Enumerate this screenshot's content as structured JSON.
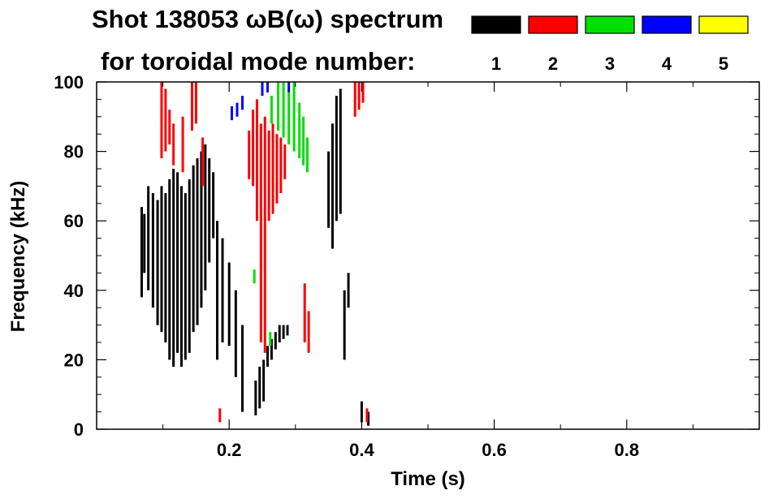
{
  "chart_data": {
    "type": "heatmap",
    "title_line1": "Shot 138053 ωB(ω) spectrum",
    "title_line2": "for toroidal mode number:",
    "xlabel": "Time (s)",
    "ylabel": "Frequency (kHz)",
    "xlim": [
      0.0,
      1.0
    ],
    "ylim": [
      0,
      100
    ],
    "xticks": [
      0.2,
      0.4,
      0.6,
      0.8
    ],
    "xtick_labels": [
      "0.2",
      "0.4",
      "0.6",
      "0.8"
    ],
    "yticks": [
      0,
      20,
      40,
      60,
      80,
      100
    ],
    "ytick_labels": [
      "0",
      "20",
      "40",
      "60",
      "80",
      "100"
    ],
    "legend": [
      {
        "mode": "1",
        "color": "#000000"
      },
      {
        "mode": "2",
        "color": "#ff0000"
      },
      {
        "mode": "3",
        "color": "#00e000"
      },
      {
        "mode": "4",
        "color": "#0000ff"
      },
      {
        "mode": "5",
        "color": "#ffff00"
      }
    ],
    "series": [
      {
        "mode": "1",
        "name": "n=1",
        "color": "#000000",
        "segments": [
          {
            "t": 0.068,
            "f0": 38,
            "f1": 64
          },
          {
            "t": 0.072,
            "f0": 45,
            "f1": 62
          },
          {
            "t": 0.078,
            "f0": 40,
            "f1": 70
          },
          {
            "t": 0.085,
            "f0": 35,
            "f1": 68
          },
          {
            "t": 0.092,
            "f0": 30,
            "f1": 66
          },
          {
            "t": 0.098,
            "f0": 28,
            "f1": 70
          },
          {
            "t": 0.104,
            "f0": 25,
            "f1": 68
          },
          {
            "t": 0.11,
            "f0": 20,
            "f1": 72
          },
          {
            "t": 0.116,
            "f0": 18,
            "f1": 75
          },
          {
            "t": 0.122,
            "f0": 22,
            "f1": 74
          },
          {
            "t": 0.128,
            "f0": 18,
            "f1": 70
          },
          {
            "t": 0.134,
            "f0": 20,
            "f1": 68
          },
          {
            "t": 0.14,
            "f0": 22,
            "f1": 72
          },
          {
            "t": 0.146,
            "f0": 28,
            "f1": 76
          },
          {
            "t": 0.152,
            "f0": 30,
            "f1": 78
          },
          {
            "t": 0.158,
            "f0": 35,
            "f1": 80
          },
          {
            "t": 0.164,
            "f0": 40,
            "f1": 82
          },
          {
            "t": 0.17,
            "f0": 48,
            "f1": 78
          },
          {
            "t": 0.176,
            "f0": 55,
            "f1": 74
          },
          {
            "t": 0.182,
            "f0": 20,
            "f1": 60
          },
          {
            "t": 0.19,
            "f0": 25,
            "f1": 55
          },
          {
            "t": 0.2,
            "f0": 24,
            "f1": 48
          },
          {
            "t": 0.21,
            "f0": 15,
            "f1": 40
          },
          {
            "t": 0.22,
            "f0": 5,
            "f1": 30
          },
          {
            "t": 0.24,
            "f0": 4,
            "f1": 14
          },
          {
            "t": 0.246,
            "f0": 6,
            "f1": 18
          },
          {
            "t": 0.252,
            "f0": 8,
            "f1": 20
          },
          {
            "t": 0.258,
            "f0": 18,
            "f1": 24
          },
          {
            "t": 0.264,
            "f0": 20,
            "f1": 26
          },
          {
            "t": 0.27,
            "f0": 23,
            "f1": 28
          },
          {
            "t": 0.276,
            "f0": 25,
            "f1": 30
          },
          {
            "t": 0.282,
            "f0": 26,
            "f1": 30
          },
          {
            "t": 0.288,
            "f0": 27,
            "f1": 30
          },
          {
            "t": 0.35,
            "f0": 58,
            "f1": 80
          },
          {
            "t": 0.356,
            "f0": 52,
            "f1": 88
          },
          {
            "t": 0.362,
            "f0": 60,
            "f1": 96
          },
          {
            "t": 0.368,
            "f0": 62,
            "f1": 98
          },
          {
            "t": 0.374,
            "f0": 20,
            "f1": 40
          },
          {
            "t": 0.38,
            "f0": 35,
            "f1": 45
          },
          {
            "t": 0.4,
            "f0": 2,
            "f1": 8
          },
          {
            "t": 0.41,
            "f0": 1,
            "f1": 5
          }
        ]
      },
      {
        "mode": "2",
        "name": "n=2",
        "color": "#ff0000",
        "segments": [
          {
            "t": 0.098,
            "f0": 78,
            "f1": 100
          },
          {
            "t": 0.104,
            "f0": 80,
            "f1": 98
          },
          {
            "t": 0.11,
            "f0": 82,
            "f1": 92
          },
          {
            "t": 0.116,
            "f0": 76,
            "f1": 88
          },
          {
            "t": 0.13,
            "f0": 74,
            "f1": 90
          },
          {
            "t": 0.144,
            "f0": 86,
            "f1": 100
          },
          {
            "t": 0.15,
            "f0": 88,
            "f1": 100
          },
          {
            "t": 0.16,
            "f0": 70,
            "f1": 84
          },
          {
            "t": 0.186,
            "f0": 2,
            "f1": 6
          },
          {
            "t": 0.23,
            "f0": 72,
            "f1": 86
          },
          {
            "t": 0.236,
            "f0": 70,
            "f1": 92
          },
          {
            "t": 0.242,
            "f0": 60,
            "f1": 95
          },
          {
            "t": 0.248,
            "f0": 25,
            "f1": 88
          },
          {
            "t": 0.254,
            "f0": 22,
            "f1": 90
          },
          {
            "t": 0.26,
            "f0": 60,
            "f1": 86
          },
          {
            "t": 0.266,
            "f0": 62,
            "f1": 88
          },
          {
            "t": 0.272,
            "f0": 65,
            "f1": 85
          },
          {
            "t": 0.278,
            "f0": 68,
            "f1": 84
          },
          {
            "t": 0.284,
            "f0": 72,
            "f1": 82
          },
          {
            "t": 0.314,
            "f0": 25,
            "f1": 42
          },
          {
            "t": 0.32,
            "f0": 22,
            "f1": 34
          },
          {
            "t": 0.39,
            "f0": 90,
            "f1": 100
          },
          {
            "t": 0.396,
            "f0": 92,
            "f1": 100
          },
          {
            "t": 0.402,
            "f0": 94,
            "f1": 100
          },
          {
            "t": 0.408,
            "f0": 2,
            "f1": 6
          }
        ]
      },
      {
        "mode": "3",
        "name": "n=3",
        "color": "#00e000",
        "segments": [
          {
            "t": 0.264,
            "f0": 88,
            "f1": 96
          },
          {
            "t": 0.274,
            "f0": 86,
            "f1": 100
          },
          {
            "t": 0.282,
            "f0": 84,
            "f1": 100
          },
          {
            "t": 0.29,
            "f0": 82,
            "f1": 98
          },
          {
            "t": 0.298,
            "f0": 80,
            "f1": 100
          },
          {
            "t": 0.306,
            "f0": 78,
            "f1": 94
          },
          {
            "t": 0.312,
            "f0": 76,
            "f1": 90
          },
          {
            "t": 0.318,
            "f0": 74,
            "f1": 84
          },
          {
            "t": 0.238,
            "f0": 42,
            "f1": 46
          },
          {
            "t": 0.262,
            "f0": 24,
            "f1": 28
          }
        ]
      },
      {
        "mode": "4",
        "name": "n=4",
        "color": "#0000ff",
        "segments": [
          {
            "t": 0.204,
            "f0": 89,
            "f1": 93
          },
          {
            "t": 0.212,
            "f0": 90,
            "f1": 94
          },
          {
            "t": 0.22,
            "f0": 92,
            "f1": 96
          },
          {
            "t": 0.25,
            "f0": 96,
            "f1": 100
          },
          {
            "t": 0.258,
            "f0": 97,
            "f1": 100
          },
          {
            "t": 0.29,
            "f0": 97,
            "f1": 100
          }
        ]
      },
      {
        "mode": "5",
        "name": "n=5",
        "color": "#ffff00",
        "segments": []
      }
    ]
  }
}
